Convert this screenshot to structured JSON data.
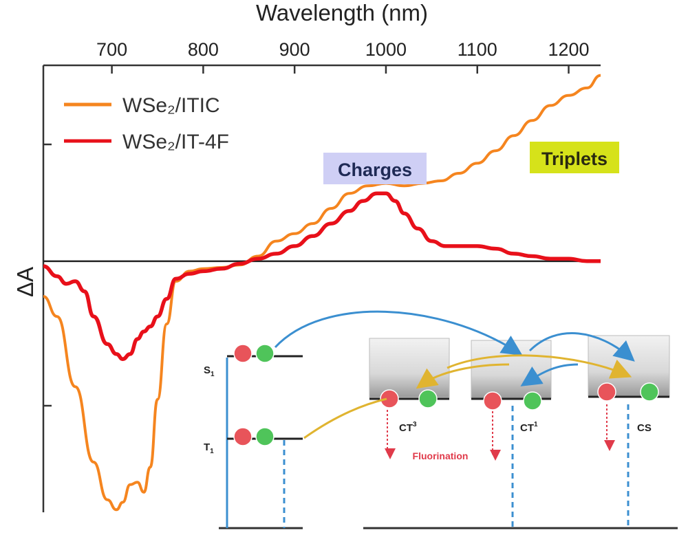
{
  "chart_data": {
    "type": "line",
    "xlabel": "Wavelength (nm)",
    "ylabel": "ΔA",
    "xlim": [
      625,
      1235
    ],
    "ylim": [
      -1.0,
      0.78
    ],
    "x_ticks": [
      700,
      800,
      900,
      1000,
      1100,
      1200
    ],
    "grid": false,
    "legend_position": "top-left",
    "series": [
      {
        "name": "WSe₂/ITIC",
        "color": "#f5851f",
        "x": [
          625,
          640,
          660,
          680,
          695,
          705,
          712,
          720,
          728,
          735,
          742,
          750,
          760,
          770,
          785,
          800,
          820,
          840,
          860,
          880,
          900,
          920,
          940,
          960,
          980,
          1000,
          1020,
          1040,
          1060,
          1080,
          1100,
          1120,
          1140,
          1160,
          1180,
          1200,
          1220,
          1235
        ],
        "y": [
          -0.14,
          -0.22,
          -0.5,
          -0.8,
          -0.95,
          -0.99,
          -0.96,
          -0.89,
          -0.88,
          -0.92,
          -0.82,
          -0.55,
          -0.25,
          -0.08,
          -0.04,
          -0.03,
          -0.025,
          -0.015,
          0.02,
          0.08,
          0.11,
          0.15,
          0.21,
          0.27,
          0.3,
          0.31,
          0.3,
          0.31,
          0.32,
          0.35,
          0.39,
          0.44,
          0.5,
          0.56,
          0.62,
          0.66,
          0.69,
          0.74
        ]
      },
      {
        "name": "WSe₂/IT-4F",
        "color": "#e8101a",
        "x": [
          625,
          640,
          650,
          660,
          670,
          680,
          695,
          705,
          712,
          720,
          728,
          735,
          742,
          750,
          760,
          770,
          785,
          800,
          820,
          840,
          860,
          880,
          900,
          920,
          940,
          960,
          975,
          990,
          1000,
          1010,
          1020,
          1035,
          1050,
          1065,
          1080,
          1100,
          1120,
          1140,
          1160,
          1180,
          1200,
          1220,
          1235
        ],
        "y": [
          -0.02,
          -0.06,
          -0.09,
          -0.08,
          -0.12,
          -0.22,
          -0.33,
          -0.37,
          -0.39,
          -0.37,
          -0.31,
          -0.28,
          -0.26,
          -0.22,
          -0.15,
          -0.07,
          -0.05,
          -0.04,
          -0.03,
          -0.01,
          0.01,
          0.03,
          0.06,
          0.1,
          0.15,
          0.2,
          0.24,
          0.27,
          0.27,
          0.24,
          0.19,
          0.13,
          0.08,
          0.06,
          0.06,
          0.06,
          0.05,
          0.03,
          0.02,
          0.01,
          0.01,
          0.0,
          0.0
        ]
      }
    ],
    "annotations": [
      {
        "text": "Charges",
        "background": "#cfcff5",
        "x": 990,
        "y": 0.42
      },
      {
        "text": "Triplets",
        "background": "#d6e21a",
        "x": 1200,
        "y": 0.48
      }
    ]
  },
  "diagram": {
    "levels": [
      {
        "label": "S",
        "sub": "1"
      },
      {
        "label": "T",
        "sub": "1"
      },
      {
        "label": "CT",
        "sup": "3"
      },
      {
        "label": "CT",
        "sup": "1"
      },
      {
        "label": "CS"
      }
    ],
    "process_label": "Fluorination",
    "colors": {
      "arrow_blue": "#3b8fd0",
      "arrow_gold": "#e0b430",
      "hole": "#e8545a",
      "electron": "#4fc45a",
      "process": "#e03a4a"
    }
  }
}
